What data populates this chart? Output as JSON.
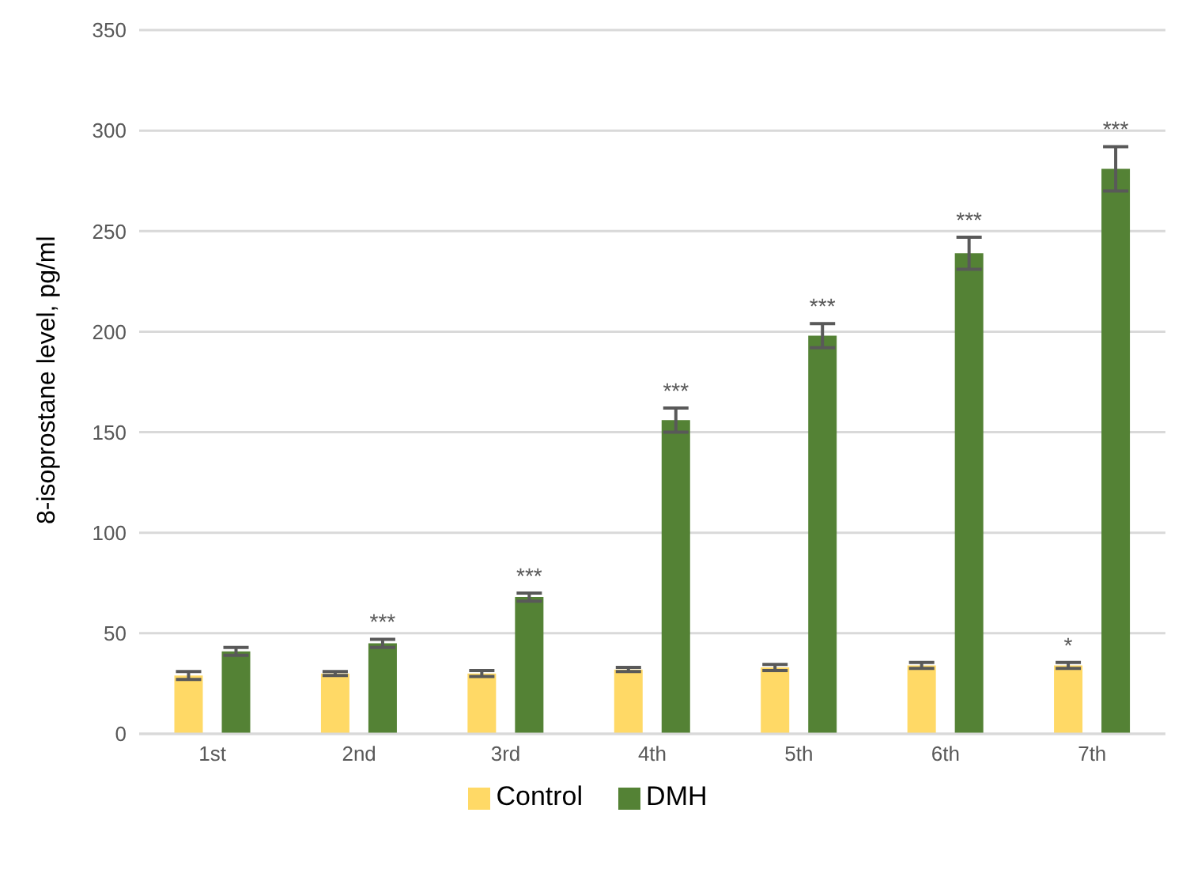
{
  "chart_data": {
    "type": "bar",
    "ylabel": "8-isoprostane level, pg/ml",
    "categories": [
      "1st",
      "2nd",
      "3rd",
      "4th",
      "5th",
      "6th",
      "7th"
    ],
    "series": [
      {
        "name": "Control",
        "color": "#ffd966",
        "values": [
          29,
          30,
          30,
          32,
          33,
          34,
          34
        ],
        "errors": [
          2,
          1,
          1.5,
          1,
          1.5,
          1.5,
          1.5
        ],
        "value_labels": [
          null,
          null,
          null,
          null,
          null,
          null,
          "*"
        ]
      },
      {
        "name": "DMH",
        "color": "#548235",
        "values": [
          41,
          45,
          68,
          156,
          198,
          239,
          281
        ],
        "errors": [
          2,
          2,
          2,
          6,
          6,
          8,
          11
        ],
        "value_labels": [
          null,
          "***",
          "***",
          "***",
          "***",
          "***",
          "***"
        ]
      }
    ],
    "ylim": [
      0,
      350
    ],
    "yticks": [
      0,
      50,
      100,
      150,
      200,
      250,
      300,
      350
    ],
    "grid": "y",
    "legend": "bottom"
  }
}
